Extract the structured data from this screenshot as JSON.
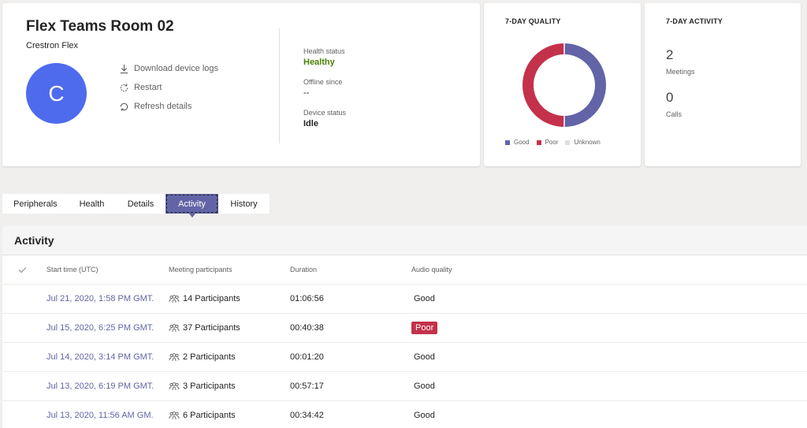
{
  "device": {
    "title": "Flex Teams Room 02",
    "subtitle": "Crestron Flex",
    "avatar_letter": "C",
    "actions": [
      "Download device logs",
      "Restart",
      "Refresh details"
    ],
    "status": [
      {
        "label": "Health status",
        "value": "Healthy"
      },
      {
        "label": "Offline since",
        "value": "--"
      },
      {
        "label": "Device status",
        "value": "Idle"
      }
    ]
  },
  "quality_card": {
    "title": "7-DAY QUALITY",
    "chart_data": {
      "type": "pie",
      "variant": "donut",
      "title": "7-DAY QUALITY",
      "categories": [
        "Good",
        "Poor",
        "Unknown"
      ],
      "values": [
        50,
        50,
        0
      ],
      "colors": [
        "#6264a7",
        "#c4314b",
        "#e1dfdd"
      ],
      "legend": "bottom"
    }
  },
  "activity_card": {
    "title": "7-DAY ACTIVITY",
    "meetings_count": "2",
    "meetings_label": "Meetings",
    "calls_count": "0",
    "calls_label": "Calls"
  },
  "tabs": [
    {
      "label": "Peripherals",
      "active": false
    },
    {
      "label": "Health",
      "active": false
    },
    {
      "label": "Details",
      "active": false
    },
    {
      "label": "Activity",
      "active": true
    },
    {
      "label": "History",
      "active": false
    }
  ],
  "activity": {
    "title": "Activity",
    "columns": [
      "Start time (UTC)",
      "Meeting participants",
      "Duration",
      "Audio quality"
    ],
    "rows": [
      {
        "start": "Jul 21, 2020, 1:58 PM GMT...",
        "participants": "14 Participants",
        "duration": "01:06:56",
        "audio": "Good"
      },
      {
        "start": "Jul 15, 2020, 6:25 PM GMT...",
        "participants": "37 Participants",
        "duration": "00:40:38",
        "audio": "Poor"
      },
      {
        "start": "Jul 14, 2020, 3:14 PM GMT...",
        "participants": "2 Participants",
        "duration": "00:01:20",
        "audio": "Good"
      },
      {
        "start": "Jul 13, 2020, 6:19 PM GMT...",
        "participants": "3 Participants",
        "duration": "00:57:17",
        "audio": "Good"
      },
      {
        "start": "Jul 13, 2020, 11:56 AM GM...",
        "participants": "6 Participants",
        "duration": "00:34:42",
        "audio": "Good"
      }
    ]
  }
}
